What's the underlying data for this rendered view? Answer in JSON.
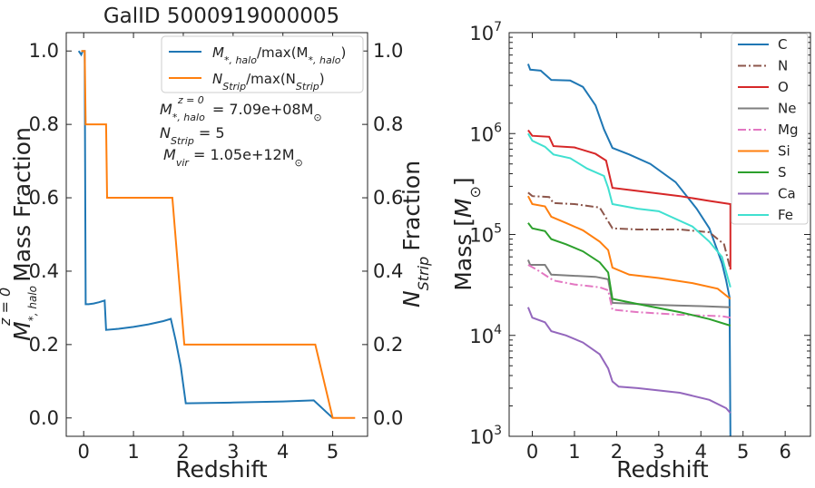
{
  "chart_data": [
    {
      "type": "line",
      "title": "GalID 5000919000005",
      "xlabel": "Redshift",
      "ylabel": "Mass Fraction",
      "ylabel_right": "Fraction",
      "xlim": [
        -0.35,
        5.7
      ],
      "ylim": [
        -0.05,
        1.05
      ],
      "xticks": [
        "0",
        "1",
        "2",
        "3",
        "4",
        "5"
      ],
      "yticks": [
        "0.0",
        "0.2",
        "0.4",
        "0.6",
        "0.8",
        "1.0"
      ],
      "legend_position": "top-right",
      "series": [
        {
          "name": "M*,halo / max(M*,halo)",
          "color": "#1f77b4",
          "points": [
            [
              -0.1,
              1.0
            ],
            [
              -0.05,
              0.99
            ],
            [
              -0.02,
              1.0
            ],
            [
              0.02,
              1.0
            ],
            [
              0.04,
              0.31
            ],
            [
              0.1,
              0.31
            ],
            [
              0.2,
              0.312
            ],
            [
              0.3,
              0.315
            ],
            [
              0.42,
              0.32
            ],
            [
              0.45,
              0.24
            ],
            [
              0.7,
              0.243
            ],
            [
              1.0,
              0.248
            ],
            [
              1.3,
              0.255
            ],
            [
              1.6,
              0.264
            ],
            [
              1.75,
              0.27
            ],
            [
              1.85,
              0.21
            ],
            [
              1.95,
              0.14
            ],
            [
              2.05,
              0.04
            ],
            [
              3.0,
              0.042
            ],
            [
              4.0,
              0.045
            ],
            [
              4.62,
              0.048
            ],
            [
              5.0,
              0.0
            ]
          ]
        },
        {
          "name": "NStrip / max(NStrip)",
          "color": "#ff7f0e",
          "points": [
            [
              -0.05,
              1.0
            ],
            [
              0.02,
              1.0
            ],
            [
              0.04,
              0.8
            ],
            [
              0.45,
              0.8
            ],
            [
              0.47,
              0.6
            ],
            [
              1.78,
              0.6
            ],
            [
              2.02,
              0.2
            ],
            [
              4.65,
              0.2
            ],
            [
              5.0,
              0.0
            ],
            [
              5.45,
              0.0
            ]
          ]
        }
      ],
      "annotations": [
        {
          "label": "M*,halo^(z=0) = 7.09e+08 M⊙",
          "value": "7.09e+08"
        },
        {
          "label": "NStrip = 5",
          "value": "5"
        },
        {
          "label": "Mvir = 1.05e+12 M⊙",
          "value": "1.05e+12"
        }
      ]
    },
    {
      "type": "line",
      "xlabel": "Redshift",
      "ylabel": "Mass [M⊙]",
      "yscale": "log",
      "xlim": [
        -0.55,
        6.6
      ],
      "ylim": [
        1000,
        10000000
      ],
      "xticks": [
        "0",
        "1",
        "2",
        "3",
        "4",
        "5",
        "6"
      ],
      "legend_position": "top-right",
      "series": [
        {
          "name": "C",
          "color": "#1f77b4",
          "dash": "solid",
          "points": [
            [
              -0.1,
              4900000
            ],
            [
              -0.05,
              4300000
            ],
            [
              0.2,
              4200000
            ],
            [
              0.45,
              3400000
            ],
            [
              0.9,
              3350000
            ],
            [
              1.2,
              2900000
            ],
            [
              1.5,
              1900000
            ],
            [
              1.7,
              1100000
            ],
            [
              1.9,
              720000
            ],
            [
              2.3,
              620000
            ],
            [
              2.8,
              500000
            ],
            [
              3.4,
              330000
            ],
            [
              3.9,
              180000
            ],
            [
              4.2,
              115000
            ],
            [
              4.5,
              52000
            ],
            [
              4.6,
              35000
            ],
            [
              4.68,
              24000
            ],
            [
              4.7,
              1000
            ]
          ]
        },
        {
          "name": "N",
          "color": "#8c564b",
          "dash": "dashdot",
          "points": [
            [
              -0.1,
              260000
            ],
            [
              0.0,
              240000
            ],
            [
              0.4,
              235000
            ],
            [
              0.5,
              205000
            ],
            [
              1.0,
              200000
            ],
            [
              1.6,
              185000
            ],
            [
              1.9,
              115000
            ],
            [
              2.5,
              112000
            ],
            [
              3.5,
              112000
            ],
            [
              4.2,
              105000
            ],
            [
              4.55,
              80000
            ],
            [
              4.7,
              45000
            ]
          ]
        },
        {
          "name": "O",
          "color": "#d62728",
          "dash": "solid",
          "points": [
            [
              -0.1,
              1080000
            ],
            [
              0.0,
              950000
            ],
            [
              0.4,
              930000
            ],
            [
              0.5,
              750000
            ],
            [
              1.0,
              730000
            ],
            [
              1.5,
              630000
            ],
            [
              1.75,
              540000
            ],
            [
              1.9,
              290000
            ],
            [
              2.5,
              270000
            ],
            [
              3.5,
              240000
            ],
            [
              4.2,
              215000
            ],
            [
              4.7,
              200000
            ],
            [
              4.7,
              45000
            ]
          ]
        },
        {
          "name": "Ne",
          "color": "#7f7f7f",
          "dash": "solid",
          "points": [
            [
              -0.1,
              56000
            ],
            [
              -0.05,
              50000
            ],
            [
              0.3,
              50000
            ],
            [
              0.45,
              40000
            ],
            [
              1.5,
              38000
            ],
            [
              1.8,
              36000
            ],
            [
              1.9,
              21000
            ],
            [
              3.0,
              20000
            ],
            [
              4.0,
              19500
            ],
            [
              4.7,
              19000
            ]
          ]
        },
        {
          "name": "Mg",
          "color": "#e377c2",
          "dash": "dashdot",
          "points": [
            [
              -0.1,
              50000
            ],
            [
              0.1,
              45000
            ],
            [
              0.5,
              35000
            ],
            [
              1.0,
              32000
            ],
            [
              1.6,
              30000
            ],
            [
              1.8,
              28000
            ],
            [
              1.9,
              18000
            ],
            [
              2.5,
              17000
            ],
            [
              3.5,
              16000
            ],
            [
              4.5,
              15500
            ],
            [
              4.7,
              15000
            ]
          ]
        },
        {
          "name": "Si",
          "color": "#ff7f0e",
          "dash": "solid",
          "points": [
            [
              -0.1,
              240000
            ],
            [
              0.0,
              200000
            ],
            [
              0.3,
              190000
            ],
            [
              0.45,
              150000
            ],
            [
              0.8,
              130000
            ],
            [
              1.2,
              110000
            ],
            [
              1.6,
              85000
            ],
            [
              1.8,
              70000
            ],
            [
              1.9,
              47000
            ],
            [
              2.3,
              40000
            ],
            [
              3.0,
              37000
            ],
            [
              3.8,
              33000
            ],
            [
              4.4,
              29000
            ],
            [
              4.7,
              23000
            ]
          ]
        },
        {
          "name": "S",
          "color": "#2ca02c",
          "dash": "solid",
          "points": [
            [
              -0.1,
              130000
            ],
            [
              0.0,
              115000
            ],
            [
              0.3,
              108000
            ],
            [
              0.45,
              90000
            ],
            [
              0.8,
              80000
            ],
            [
              1.2,
              68000
            ],
            [
              1.6,
              53000
            ],
            [
              1.8,
              42000
            ],
            [
              1.9,
              23000
            ],
            [
              2.5,
              20500
            ],
            [
              3.5,
              17000
            ],
            [
              4.2,
              14500
            ],
            [
              4.7,
              12500
            ]
          ]
        },
        {
          "name": "Ca",
          "color": "#9467bd",
          "dash": "solid",
          "points": [
            [
              -0.1,
              19000
            ],
            [
              0.0,
              15000
            ],
            [
              0.3,
              13500
            ],
            [
              0.45,
              11000
            ],
            [
              0.8,
              10000
            ],
            [
              1.2,
              8500
            ],
            [
              1.6,
              6500
            ],
            [
              1.8,
              4700
            ],
            [
              1.9,
              3500
            ],
            [
              2.05,
              3100
            ],
            [
              2.5,
              3000
            ],
            [
              3.5,
              2700
            ],
            [
              4.2,
              2300
            ],
            [
              4.6,
              1900
            ],
            [
              4.7,
              1700
            ]
          ]
        },
        {
          "name": "Fe",
          "color": "#40e0d0",
          "dash": "solid",
          "points": [
            [
              -0.1,
              1000000
            ],
            [
              0.0,
              850000
            ],
            [
              0.3,
              740000
            ],
            [
              0.5,
              620000
            ],
            [
              0.9,
              570000
            ],
            [
              1.3,
              450000
            ],
            [
              1.7,
              380000
            ],
            [
              1.8,
              290000
            ],
            [
              1.9,
              200000
            ],
            [
              2.5,
              180000
            ],
            [
              3.0,
              170000
            ],
            [
              3.8,
              120000
            ],
            [
              4.2,
              85000
            ],
            [
              4.5,
              60000
            ],
            [
              4.7,
              30000
            ]
          ]
        }
      ]
    }
  ],
  "left": {
    "title": "GalID 5000919000005",
    "xlabel": "Redshift",
    "ylabel_main": "Mass Fraction",
    "ylabel_right": "Fraction",
    "legend1_pre": "M",
    "legend1_sub": "*, halo",
    "legend1_mid": "/max(M",
    "legend1_sub2": "*, halo",
    "legend1_end": ")",
    "legend2_pre": "N",
    "legend2_sub": "Strip",
    "legend2_mid": "/max(N",
    "legend2_sub2": "Strip",
    "legend2_end": ")",
    "ann1_sym": "M",
    "ann1_sup": "z = 0",
    "ann1_sub": "*, halo",
    "ann1_val": " = 7.09e+08M",
    "ann1_sun": "⊙",
    "ann2_sym": "N",
    "ann2_sub": "Strip",
    "ann2_val": " = 5",
    "ann3_sym": "M",
    "ann3_sub": "vir",
    "ann3_val": " = 1.05e+12M",
    "ann3_sun": "⊙",
    "ylab_sym": "M",
    "ylab_sup": "z = 0",
    "ylab_sub": "*, halo",
    "ylabr_sym": "N",
    "ylabr_sub": "Strip"
  },
  "right": {
    "xlabel": "Redshift",
    "ylabel_pre": "Mass [",
    "ylabel_sym": "M",
    "ylabel_sun": "⊙",
    "ylabel_end": "]",
    "decade_base": "10",
    "decades": [
      "3",
      "4",
      "5",
      "6",
      "7"
    ]
  }
}
